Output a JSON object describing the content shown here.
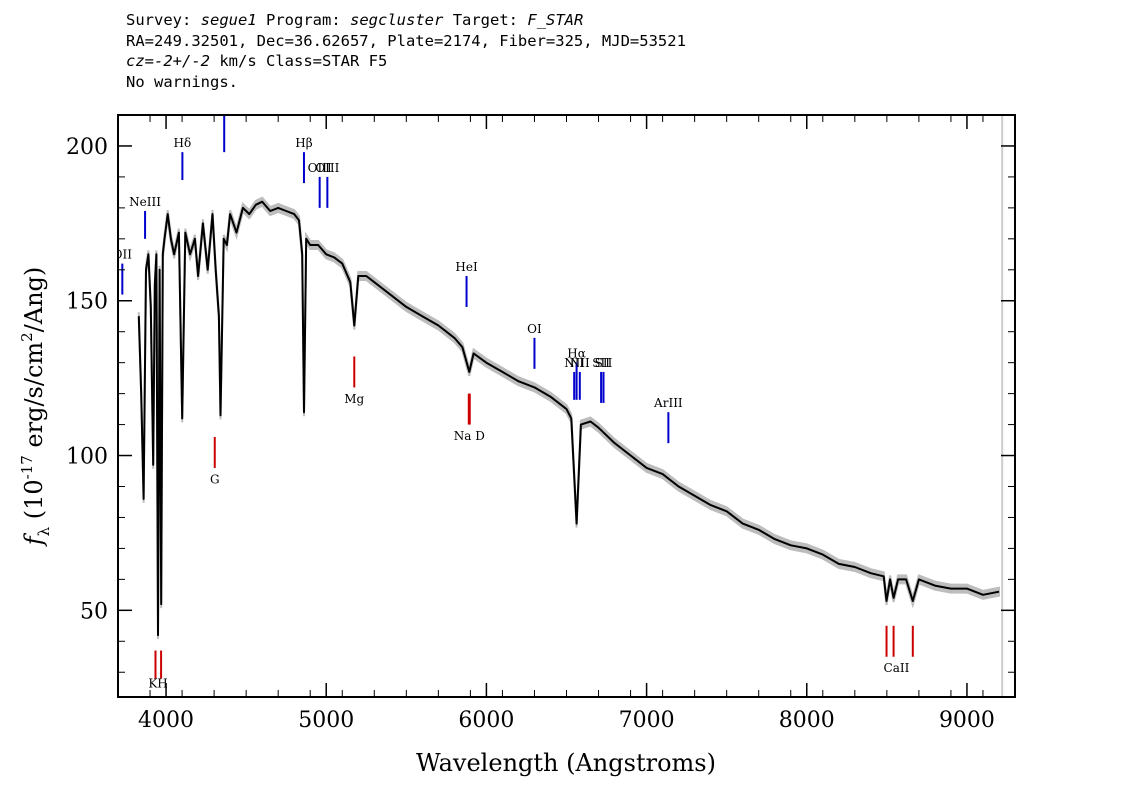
{
  "header": {
    "line1": {
      "survey_label": "Survey:",
      "survey": "segue1",
      "program_label": "Program:",
      "program": "segcluster",
      "target_label": "Target:",
      "target": "F_STAR"
    },
    "line2": "RA=249.32501, Dec=36.62657, Plate=2174, Fiber=325, MJD=53521",
    "line3": {
      "cz_label": "cz=",
      "cz": "-2+/-2",
      "rest": " km/s Class=STAR F5"
    },
    "line4": "No warnings."
  },
  "colors": {
    "spectrum": "#000000",
    "error_band": "#bdbdbd",
    "emission": "#0000cc",
    "absorption": "#cc0000",
    "sky": "#000000"
  },
  "chart_data": {
    "type": "line",
    "xlabel": "Wavelength (Angstroms)",
    "ylabel_parts": {
      "f": "f",
      "sub": "λ",
      "open": " (10",
      "exp1": "-17",
      "mid": " erg/s/cm",
      "exp2": "2",
      "close": "/Ang)"
    },
    "xlim": [
      3700,
      9300
    ],
    "ylim": [
      22,
      210
    ],
    "xticks": [
      4000,
      5000,
      6000,
      7000,
      8000,
      9000
    ],
    "yticks": [
      50,
      100,
      150,
      200
    ],
    "series": [
      {
        "x": [
          3830,
          3845,
          3860,
          3875,
          3890,
          3905,
          3920,
          3930,
          3940,
          3950,
          3960,
          3970,
          3980,
          3990,
          4010,
          4030,
          4050,
          4080,
          4101,
          4120,
          4150,
          4180,
          4200,
          4230,
          4260,
          4290,
          4310,
          4330,
          4340,
          4360,
          4380,
          4400,
          4440,
          4480,
          4520,
          4560,
          4600,
          4650,
          4700,
          4750,
          4800,
          4830,
          4850,
          4861,
          4875,
          4900,
          4950,
          5000,
          5050,
          5100,
          5150,
          5175,
          5200,
          5250,
          5300,
          5400,
          5500,
          5600,
          5700,
          5800,
          5850,
          5893,
          5920,
          6000,
          6100,
          6200,
          6300,
          6400,
          6500,
          6530,
          6563,
          6590,
          6650,
          6700,
          6800,
          6900,
          7000,
          7100,
          7200,
          7300,
          7400,
          7500,
          7600,
          7700,
          7800,
          7900,
          8000,
          8100,
          8200,
          8300,
          8400,
          8480,
          8498,
          8520,
          8542,
          8570,
          8620,
          8662,
          8700,
          8800,
          8900,
          9000,
          9100,
          9200
        ],
        "y": [
          145,
          120,
          86,
          160,
          165,
          148,
          97,
          155,
          165,
          42,
          160,
          52,
          165,
          170,
          178,
          170,
          165,
          172,
          112,
          172,
          165,
          170,
          158,
          175,
          160,
          178,
          160,
          145,
          113,
          170,
          168,
          178,
          172,
          180,
          178,
          181,
          182,
          179,
          180,
          179,
          178,
          176,
          165,
          114,
          170,
          168,
          168,
          165,
          164,
          162,
          156,
          142,
          158,
          158,
          156,
          152,
          148,
          145,
          142,
          138,
          135,
          127,
          133,
          130,
          127,
          124,
          122,
          119,
          115,
          112,
          78,
          110,
          111,
          109,
          104,
          100,
          96,
          94,
          90,
          87,
          84,
          82,
          78,
          76,
          73,
          71,
          70,
          68,
          65,
          64,
          62,
          61,
          53,
          60,
          54,
          60,
          60,
          53,
          60,
          58,
          57,
          57,
          55,
          56
        ]
      }
    ],
    "emission_lines": [
      {
        "label": "OII",
        "wave": 3727,
        "y0": 152,
        "y1": 162
      },
      {
        "label": "NeIII",
        "wave": 3869,
        "y0": 170,
        "y1": 179
      },
      {
        "label": "Hδ",
        "wave": 4102,
        "y0": 189,
        "y1": 198
      },
      {
        "label": "OIII",
        "wave": 4363,
        "y0": 198,
        "y1": 210
      },
      {
        "label": "Hβ",
        "wave": 4861,
        "y0": 188,
        "y1": 198
      },
      {
        "label": "OIII",
        "wave": 4959,
        "y0": 180,
        "y1": 190
      },
      {
        "label": "OIII",
        "wave": 5007,
        "y0": 180,
        "y1": 190
      },
      {
        "label": "HeI",
        "wave": 5876,
        "y0": 148,
        "y1": 158
      },
      {
        "label": "OI",
        "wave": 6300,
        "y0": 128,
        "y1": 138
      },
      {
        "label": "NII",
        "wave": 6548,
        "y0": 118,
        "y1": 127
      },
      {
        "label": "Hα",
        "wave": 6563,
        "y0": 118,
        "y1": 130
      },
      {
        "label": "NII",
        "wave": 6583,
        "y0": 118,
        "y1": 127
      },
      {
        "label": "SII",
        "wave": 6716,
        "y0": 117,
        "y1": 127
      },
      {
        "label": "SII",
        "wave": 6731,
        "y0": 117,
        "y1": 127
      },
      {
        "label": "ArIII",
        "wave": 7136,
        "y0": 104,
        "y1": 114
      }
    ],
    "absorption_lines": [
      {
        "label": "K",
        "wave": 3934,
        "y0": 28,
        "y1": 37
      },
      {
        "label": "H",
        "wave": 3969,
        "y0": 28,
        "y1": 37
      },
      {
        "label": "G",
        "wave": 4304,
        "y0": 96,
        "y1": 106
      },
      {
        "label": "Mg",
        "wave": 5175,
        "y0": 122,
        "y1": 132
      },
      {
        "label": "Na",
        "wave": 5890,
        "y0": 110,
        "y1": 120
      },
      {
        "label": "D",
        "wave": 5896,
        "y0": 110,
        "y1": 120
      },
      {
        "label": "CaII",
        "wave": 8498,
        "y0": 35,
        "y1": 45
      },
      {
        "label": "CaII",
        "wave": 8542,
        "y0": 35,
        "y1": 45
      },
      {
        "label": "CaII",
        "wave": 8662,
        "y0": 35,
        "y1": 45
      }
    ],
    "absorption_labels": [
      {
        "text": "KH",
        "wave": 3950,
        "y": 25
      },
      {
        "text": "G",
        "wave": 4304,
        "y": 91
      },
      {
        "text": "Mg",
        "wave": 5175,
        "y": 117
      },
      {
        "text": "Na  D",
        "wave": 5893,
        "y": 105
      },
      {
        "text": "CaII",
        "wave": 8560,
        "y": 30
      }
    ]
  }
}
